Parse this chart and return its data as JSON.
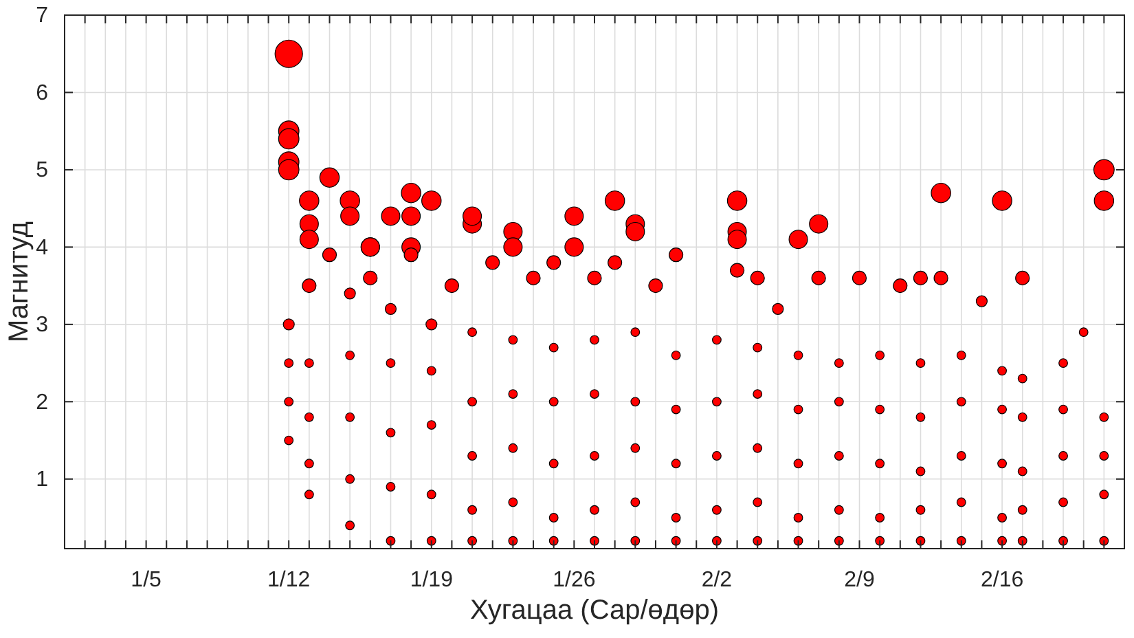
{
  "chart_data": {
    "type": "bubble",
    "xlabel": "Хугацаа (Сар/өдөр)",
    "ylabel": "Магнитуд",
    "grid": true,
    "marker": "circle",
    "xlim": [
      "--01-01",
      "--02-22"
    ],
    "ylim": [
      0.1,
      7
    ],
    "yticks": [
      1,
      2,
      3,
      4,
      5,
      6,
      7
    ],
    "xticks": [
      {
        "value": "--01-02",
        "label": null
      },
      {
        "value": "--01-03",
        "label": null
      },
      {
        "value": "--01-04",
        "label": null
      },
      {
        "value": "--01-05",
        "label": "1/5"
      },
      {
        "value": "--01-06",
        "label": null
      },
      {
        "value": "--01-07",
        "label": null
      },
      {
        "value": "--01-08",
        "label": null
      },
      {
        "value": "--01-09",
        "label": null
      },
      {
        "value": "--01-10",
        "label": null
      },
      {
        "value": "--01-11",
        "label": null
      },
      {
        "value": "--01-12",
        "label": "1/12"
      },
      {
        "value": "--01-13",
        "label": null
      },
      {
        "value": "--01-14",
        "label": null
      },
      {
        "value": "--01-15",
        "label": null
      },
      {
        "value": "--01-16",
        "label": null
      },
      {
        "value": "--01-17",
        "label": null
      },
      {
        "value": "--01-18",
        "label": null
      },
      {
        "value": "--01-19",
        "label": "1/19"
      },
      {
        "value": "--01-20",
        "label": null
      },
      {
        "value": "--01-21",
        "label": null
      },
      {
        "value": "--01-22",
        "label": null
      },
      {
        "value": "--01-23",
        "label": null
      },
      {
        "value": "--01-24",
        "label": null
      },
      {
        "value": "--01-25",
        "label": null
      },
      {
        "value": "--01-26",
        "label": "1/26"
      },
      {
        "value": "--01-27",
        "label": null
      },
      {
        "value": "--01-28",
        "label": null
      },
      {
        "value": "--01-29",
        "label": null
      },
      {
        "value": "--01-30",
        "label": null
      },
      {
        "value": "--01-31",
        "label": null
      },
      {
        "value": "--02-01",
        "label": null
      },
      {
        "value": "--02-02",
        "label": "2/2"
      },
      {
        "value": "--02-03",
        "label": null
      },
      {
        "value": "--02-04",
        "label": null
      },
      {
        "value": "--02-05",
        "label": null
      },
      {
        "value": "--02-06",
        "label": null
      },
      {
        "value": "--02-07",
        "label": null
      },
      {
        "value": "--02-08",
        "label": null
      },
      {
        "value": "--02-09",
        "label": "2/9"
      },
      {
        "value": "--02-10",
        "label": null
      },
      {
        "value": "--02-11",
        "label": null
      },
      {
        "value": "--02-12",
        "label": null
      },
      {
        "value": "--02-13",
        "label": null
      },
      {
        "value": "--02-14",
        "label": null
      },
      {
        "value": "--02-15",
        "label": null
      },
      {
        "value": "--02-16",
        "label": "2/16"
      },
      {
        "value": "--02-17",
        "label": null
      },
      {
        "value": "--02-18",
        "label": null
      },
      {
        "value": "--02-19",
        "label": null
      },
      {
        "value": "--02-20",
        "label": null
      },
      {
        "value": "--02-21",
        "label": null
      }
    ],
    "series": [
      {
        "color": "#ff0000",
        "x": [
          "--01-12",
          "--01-12",
          "--01-12",
          "--01-12",
          "--01-12",
          "--01-14",
          "--01-13",
          "--01-13",
          "--01-13",
          "--01-15",
          "--01-15",
          "--01-16",
          "--01-16",
          "--01-17",
          "--01-18",
          "--01-18",
          "--01-18",
          "--01-19",
          "--01-21",
          "--01-21",
          "--01-23",
          "--01-23",
          "--01-26",
          "--01-26",
          "--01-28",
          "--01-29",
          "--01-29",
          "--02-03",
          "--02-03",
          "--02-03",
          "--02-06",
          "--02-07",
          "--02-13",
          "--02-16",
          "--02-21",
          "--02-21",
          "--01-14",
          "--01-16",
          "--01-18",
          "--01-20",
          "--01-22",
          "--01-24",
          "--01-25",
          "--01-27",
          "--01-28",
          "--01-30",
          "--01-31",
          "--02-03",
          "--02-04",
          "--02-05",
          "--02-07",
          "--02-09",
          "--02-11",
          "--02-12",
          "--02-13",
          "--02-15",
          "--02-17",
          "--02-20",
          "--01-12",
          "--01-12",
          "--01-12",
          "--01-12",
          "--01-13",
          "--01-13",
          "--01-13",
          "--01-13",
          "--01-13",
          "--01-15",
          "--01-15",
          "--01-15",
          "--01-15",
          "--01-15",
          "--01-17",
          "--01-17",
          "--01-17",
          "--01-17",
          "--01-17",
          "--01-19",
          "--01-19",
          "--01-19",
          "--01-19",
          "--01-19",
          "--01-21",
          "--01-21",
          "--01-21",
          "--01-21",
          "--01-21",
          "--01-23",
          "--01-23",
          "--01-23",
          "--01-23",
          "--01-23",
          "--01-25",
          "--01-25",
          "--01-25",
          "--01-25",
          "--01-25",
          "--01-27",
          "--01-27",
          "--01-27",
          "--01-27",
          "--01-27",
          "--01-29",
          "--01-29",
          "--01-29",
          "--01-29",
          "--01-29",
          "--01-31",
          "--01-31",
          "--01-31",
          "--01-31",
          "--01-31",
          "--02-02",
          "--02-02",
          "--02-02",
          "--02-02",
          "--02-02",
          "--02-04",
          "--02-04",
          "--02-04",
          "--02-04",
          "--02-04",
          "--02-06",
          "--02-06",
          "--02-06",
          "--02-06",
          "--02-06",
          "--02-08",
          "--02-08",
          "--02-08",
          "--02-08",
          "--02-08",
          "--02-10",
          "--02-10",
          "--02-10",
          "--02-10",
          "--02-10",
          "--02-12",
          "--02-12",
          "--02-12",
          "--02-12",
          "--02-12",
          "--02-14",
          "--02-14",
          "--02-14",
          "--02-14",
          "--02-14",
          "--02-16",
          "--02-16",
          "--02-16",
          "--02-16",
          "--02-16",
          "--02-17",
          "--02-17",
          "--02-17",
          "--02-17",
          "--02-17",
          "--02-19",
          "--02-19",
          "--02-19",
          "--02-19",
          "--02-19",
          "--02-21",
          "--02-21",
          "--02-21",
          "--02-21"
        ],
        "values": [
          6.5,
          5.5,
          5.4,
          5.1,
          5.0,
          4.9,
          4.6,
          4.3,
          4.1,
          4.6,
          4.4,
          4.0,
          4.0,
          4.4,
          4.4,
          4.7,
          4.0,
          4.6,
          4.3,
          4.4,
          4.2,
          4.0,
          4.4,
          4.0,
          4.6,
          4.3,
          4.2,
          4.6,
          4.2,
          4.1,
          4.1,
          4.3,
          4.7,
          4.6,
          5.0,
          4.6,
          3.9,
          3.6,
          3.9,
          3.5,
          3.8,
          3.6,
          3.8,
          3.6,
          3.8,
          3.5,
          3.9,
          3.7,
          3.6,
          3.2,
          3.6,
          3.6,
          3.5,
          3.6,
          3.6,
          3.3,
          3.6,
          2.9,
          3.0,
          2.5,
          2.0,
          1.5,
          3.5,
          2.5,
          1.8,
          1.2,
          0.8,
          3.4,
          2.6,
          1.8,
          1.0,
          0.4,
          3.2,
          2.5,
          1.6,
          0.9,
          0.2,
          3.0,
          2.4,
          1.7,
          0.8,
          0.2,
          2.9,
          2.0,
          1.3,
          0.6,
          0.2,
          2.8,
          2.1,
          1.4,
          0.7,
          0.2,
          2.7,
          2.0,
          1.2,
          0.5,
          0.2,
          2.8,
          2.1,
          1.3,
          0.6,
          0.2,
          2.9,
          2.0,
          1.4,
          0.7,
          0.2,
          2.6,
          1.9,
          1.2,
          0.5,
          0.2,
          2.8,
          2.0,
          1.3,
          0.6,
          0.2,
          2.7,
          2.1,
          1.4,
          0.7,
          0.2,
          2.6,
          1.9,
          1.2,
          0.5,
          0.2,
          2.5,
          2.0,
          1.3,
          0.6,
          0.2,
          2.6,
          1.9,
          1.2,
          0.5,
          0.2,
          2.5,
          1.8,
          1.1,
          0.6,
          0.2,
          2.6,
          2.0,
          1.3,
          0.7,
          0.2,
          2.4,
          1.9,
          1.2,
          0.5,
          0.2,
          2.3,
          1.8,
          1.1,
          0.6,
          0.2,
          2.5,
          1.9,
          1.3,
          0.7,
          0.2,
          1.8,
          1.3,
          0.8,
          0.2
        ],
        "sizes": [
          1,
          0.55,
          0.55,
          0.55,
          0.55,
          0.5,
          0.5,
          0.45,
          0.45,
          0.5,
          0.45,
          0.45,
          0.45,
          0.45,
          0.45,
          0.5,
          0.45,
          0.5,
          0.45,
          0.45,
          0.45,
          0.45,
          0.45,
          0.45,
          0.5,
          0.45,
          0.45,
          0.5,
          0.45,
          0.45,
          0.45,
          0.45,
          0.5,
          0.5,
          0.55,
          0.5,
          0.25,
          0.25,
          0.25,
          0.25,
          0.25,
          0.25,
          0.25,
          0.25,
          0.25,
          0.25,
          0.25,
          0.25,
          0.25,
          0.16,
          0.25,
          0.25,
          0.25,
          0.25,
          0.25,
          0.16,
          0.25,
          0.1,
          0.16,
          0.1,
          0.1,
          0.1,
          0.25,
          0.1,
          0.1,
          0.1,
          0.1,
          0.16,
          0.1,
          0.1,
          0.1,
          0.1,
          0.16,
          0.1,
          0.1,
          0.1,
          0.1,
          0.16,
          0.1,
          0.1,
          0.1,
          0.1,
          0.1,
          0.1,
          0.1,
          0.1,
          0.1,
          0.1,
          0.1,
          0.1,
          0.1,
          0.1,
          0.1,
          0.1,
          0.1,
          0.1,
          0.1,
          0.1,
          0.1,
          0.1,
          0.1,
          0.1,
          0.1,
          0.1,
          0.1,
          0.1,
          0.1,
          0.1,
          0.1,
          0.1,
          0.1,
          0.1,
          0.1,
          0.1,
          0.1,
          0.1,
          0.1,
          0.1,
          0.1,
          0.1,
          0.1,
          0.1,
          0.1,
          0.1,
          0.1,
          0.1,
          0.1,
          0.1,
          0.1,
          0.1,
          0.1,
          0.1,
          0.1,
          0.1,
          0.1,
          0.1,
          0.1,
          0.1,
          0.1,
          0.1,
          0.1,
          0.1,
          0.1,
          0.1,
          0.1,
          0.1,
          0.1,
          0.1,
          0.1,
          0.1,
          0.1,
          0.1,
          0.1,
          0.1,
          0.1,
          0.1,
          0.1,
          0.1,
          0.1,
          0.1,
          0.1,
          0.1,
          0.1,
          0.1,
          0.1,
          0.1
        ]
      }
    ]
  }
}
